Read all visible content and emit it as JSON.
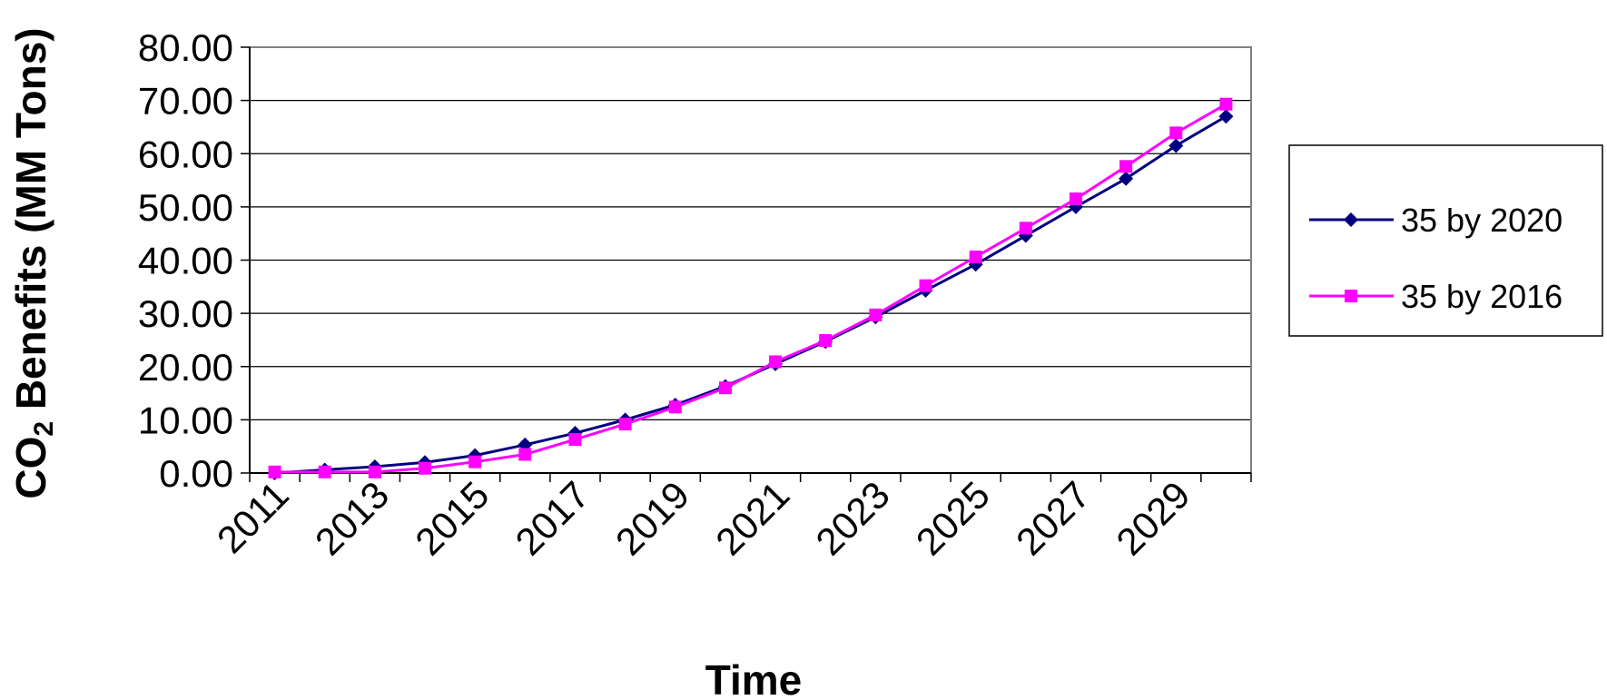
{
  "chart_data": {
    "type": "line",
    "title": "",
    "xlabel": "Time",
    "ylabel": "CO₂ Benefits (MM Tons)",
    "ylim": [
      0,
      80
    ],
    "y_tick_labels": [
      "0.00",
      "10.00",
      "20.00",
      "30.00",
      "40.00",
      "50.00",
      "60.00",
      "70.00",
      "80.00"
    ],
    "x": [
      2011,
      2012,
      2013,
      2014,
      2015,
      2016,
      2017,
      2018,
      2019,
      2020,
      2021,
      2022,
      2023,
      2024,
      2025,
      2026,
      2027,
      2028,
      2029,
      2030
    ],
    "x_tick_labels": [
      "2011",
      "2013",
      "2015",
      "2017",
      "2019",
      "2021",
      "2023",
      "2025",
      "2027",
      "2029"
    ],
    "grid": "horizontal",
    "legend_position": "right",
    "series": [
      {
        "name": "35 by 2020",
        "color": "#000080",
        "marker": "diamond",
        "values": [
          0.0,
          0.6,
          1.2,
          2.0,
          3.3,
          5.3,
          7.5,
          10.0,
          12.8,
          16.3,
          20.5,
          24.7,
          29.3,
          34.3,
          39.2,
          44.6,
          50.0,
          55.3,
          61.5,
          67.0
        ]
      },
      {
        "name": "35 by 2016",
        "color": "#FF00FF",
        "marker": "square",
        "values": [
          0.2,
          0.2,
          0.2,
          0.9,
          2.1,
          3.5,
          6.3,
          9.2,
          12.4,
          16.0,
          20.9,
          24.9,
          29.7,
          35.2,
          40.6,
          46.0,
          51.5,
          57.6,
          63.9,
          69.3
        ]
      }
    ]
  }
}
